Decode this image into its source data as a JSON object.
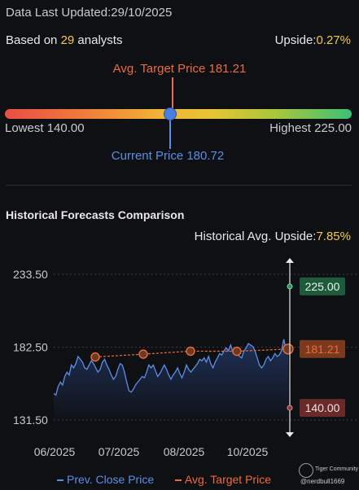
{
  "header": {
    "updated_label": "Data Last Updated:",
    "updated_date": "29/10/2025"
  },
  "analysts": {
    "prefix": "Based on ",
    "count": "29",
    "suffix": " analysts"
  },
  "upside": {
    "label": "Upside:",
    "value": "0.27%"
  },
  "target": {
    "label": "Avg. Target Price 181.21"
  },
  "range": {
    "lowest": "Lowest 140.00",
    "highest": "Highest 225.00",
    "current": "Current Price 180.72",
    "low_value": 140.0,
    "high_value": 225.0,
    "current_value": 180.72,
    "target_value": 181.21
  },
  "history": {
    "title": "Historical Forecasts Comparison",
    "upside_label": "Historical Avg. Upside:",
    "upside_value": "7.85%"
  },
  "legend": {
    "prev_close": "Prev. Close Price",
    "avg_target": "Avg. Target Price"
  },
  "watermark": {
    "brand": "Tiger Community",
    "user": "@nerdbull1669"
  },
  "colors": {
    "price_line": "#5b8fe6",
    "target_line": "#ef6a3c",
    "high_badge": "#1e5a3c",
    "target_badge": "#7a3a1e",
    "low_badge": "#6a2a2a",
    "accent_yellow": "#f2c94c"
  },
  "chart_data": {
    "type": "line",
    "ylim": [
      131.5,
      233.5
    ],
    "yticks": [
      "233.50",
      "182.50",
      "131.50"
    ],
    "xticks": [
      "06/2025",
      "07/2025",
      "08/2025",
      "10/2025"
    ],
    "series": [
      {
        "name": "Prev. Close Price",
        "values": [
          150,
          149,
          155,
          158,
          156,
          162,
          165,
          163,
          170,
          168,
          171,
          176,
          174,
          172,
          168,
          167,
          170,
          173,
          171,
          168,
          165,
          167,
          172,
          174,
          170,
          167,
          163,
          160,
          162,
          167,
          171,
          170,
          165,
          158,
          152,
          151,
          153,
          156,
          158,
          160,
          162,
          161,
          165,
          170,
          168,
          170,
          166,
          162,
          164,
          167,
          170,
          167,
          163,
          160,
          163,
          165,
          168,
          164,
          161,
          165,
          170,
          167,
          165,
          167,
          169,
          171,
          174,
          173,
          175,
          172,
          176,
          171,
          168,
          172,
          175,
          178,
          177,
          180,
          182,
          180,
          184,
          179,
          180,
          178,
          176,
          175,
          180,
          182,
          185,
          184,
          183,
          180,
          175,
          170,
          168,
          170,
          174,
          176,
          173,
          175,
          178,
          176,
          177,
          180,
          188,
          181,
          180.72
        ]
      },
      {
        "name": "Avg. Target Price",
        "values": [
          175.6,
          177.6,
          179.7,
          179.6,
          181.21
        ]
      }
    ],
    "right_badges": [
      "225.00",
      "181.21",
      "140.00"
    ]
  }
}
